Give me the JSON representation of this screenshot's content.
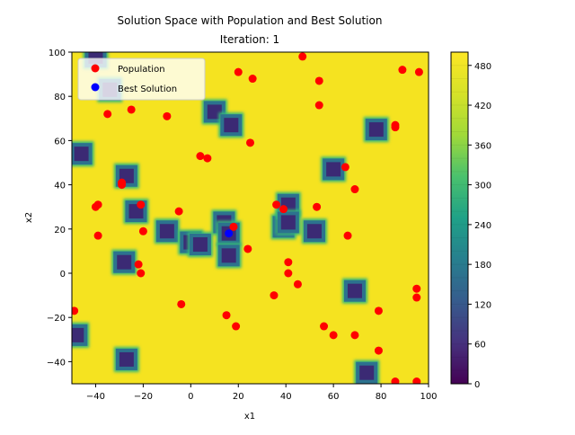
{
  "chart_data": {
    "type": "scatter",
    "title": "Solution Space with Population and Best Solution",
    "subtitle": "Iteration: 1",
    "xlabel": "x1",
    "ylabel": "x2",
    "xlim": [
      -50,
      100
    ],
    "ylim": [
      -50,
      100
    ],
    "xticks": [
      -40,
      -20,
      0,
      20,
      40,
      60,
      80,
      100
    ],
    "yticks": [
      -40,
      -20,
      0,
      20,
      40,
      60,
      80,
      100
    ],
    "xtick_labels": [
      "−40",
      "−20",
      "0",
      "20",
      "40",
      "60",
      "80",
      "100"
    ],
    "ytick_labels": [
      "−40",
      "−20",
      "0",
      "20",
      "40",
      "60",
      "80",
      "100"
    ],
    "legend_position": "upper-left",
    "background_value": 500,
    "colorbar": {
      "cmap": "viridis",
      "range": [
        0,
        500
      ],
      "ticks": [
        0,
        60,
        120,
        180,
        240,
        300,
        360,
        420,
        480
      ],
      "levels": 25
    },
    "basins": [
      [
        -40,
        98
      ],
      [
        -34,
        83
      ],
      [
        -46,
        54
      ],
      [
        -27,
        44
      ],
      [
        -23,
        28
      ],
      [
        -10,
        19
      ],
      [
        0,
        14
      ],
      [
        4,
        13
      ],
      [
        10,
        73
      ],
      [
        17,
        67
      ],
      [
        14,
        23
      ],
      [
        16,
        18
      ],
      [
        16,
        8
      ],
      [
        39,
        21
      ],
      [
        41,
        31
      ],
      [
        41,
        23
      ],
      [
        52,
        19
      ],
      [
        60,
        47
      ],
      [
        78,
        65
      ],
      [
        -28,
        5
      ],
      [
        -48,
        -28
      ],
      [
        -27,
        -39
      ],
      [
        69,
        -8
      ],
      [
        74,
        -45
      ]
    ],
    "series": [
      {
        "name": "Population",
        "color": "#ff0000",
        "points": [
          [
            -49,
            -17
          ],
          [
            -39,
            31
          ],
          [
            -40,
            30
          ],
          [
            -39,
            17
          ],
          [
            -35,
            72
          ],
          [
            -29,
            40
          ],
          [
            -29,
            41
          ],
          [
            -25,
            74
          ],
          [
            -21,
            31
          ],
          [
            -20,
            19
          ],
          [
            -22,
            4
          ],
          [
            -21,
            0
          ],
          [
            -10,
            71
          ],
          [
            -5,
            28
          ],
          [
            -4,
            -14
          ],
          [
            4,
            53
          ],
          [
            7,
            52
          ],
          [
            20,
            91
          ],
          [
            26,
            88
          ],
          [
            18,
            21
          ],
          [
            24,
            11
          ],
          [
            25,
            59
          ],
          [
            15,
            -19
          ],
          [
            19,
            -24
          ],
          [
            36,
            31
          ],
          [
            39,
            29
          ],
          [
            41,
            5
          ],
          [
            41,
            0
          ],
          [
            45,
            -5
          ],
          [
            35,
            -10
          ],
          [
            47,
            98
          ],
          [
            54,
            87
          ],
          [
            54,
            76
          ],
          [
            53,
            30
          ],
          [
            65,
            48
          ],
          [
            69,
            38
          ],
          [
            66,
            17
          ],
          [
            56,
            -24
          ],
          [
            60,
            -28
          ],
          [
            69,
            -28
          ],
          [
            79,
            -17
          ],
          [
            79,
            -35
          ],
          [
            86,
            67
          ],
          [
            86,
            66
          ],
          [
            89,
            92
          ],
          [
            96,
            91
          ],
          [
            95,
            -7
          ],
          [
            95,
            -11
          ],
          [
            86,
            -49
          ],
          [
            95,
            -49
          ]
        ]
      },
      {
        "name": "Best Solution",
        "color": "#0000ff",
        "points": [
          [
            16,
            18
          ]
        ]
      }
    ]
  }
}
